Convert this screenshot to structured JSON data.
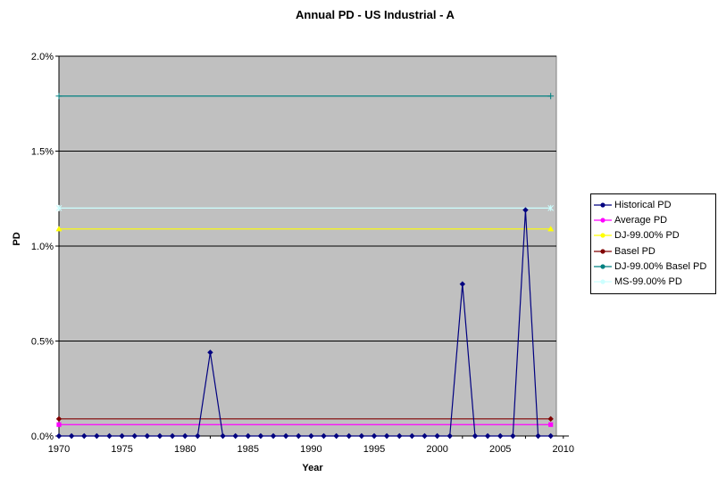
{
  "chart_data": {
    "type": "line",
    "title": "Annual PD - US Industrial - A",
    "xlabel": "Year",
    "ylabel": "PD",
    "xlim": [
      1970,
      2010
    ],
    "ylim": [
      0,
      0.02
    ],
    "x_ticks": [
      1970,
      1975,
      1980,
      1985,
      1990,
      1995,
      2000,
      2005,
      2010
    ],
    "y_ticks": [
      "0.0%",
      "0.5%",
      "1.0%",
      "1.5%",
      "2.0%"
    ],
    "y_tick_values": [
      0,
      0.005,
      0.01,
      0.015,
      0.02
    ],
    "grid": "horizontal",
    "legend_position": "right",
    "plot_background": "#c0c0c0",
    "x": [
      1970,
      1971,
      1972,
      1973,
      1974,
      1975,
      1976,
      1977,
      1978,
      1979,
      1980,
      1981,
      1982,
      1983,
      1984,
      1985,
      1986,
      1987,
      1988,
      1989,
      1990,
      1991,
      1992,
      1993,
      1994,
      1995,
      1996,
      1997,
      1998,
      1999,
      2000,
      2001,
      2002,
      2003,
      2004,
      2005,
      2006,
      2007,
      2008,
      2009
    ],
    "series": [
      {
        "name": "Historical PD",
        "color": "#000080",
        "marker": "diamond",
        "values": [
          0,
          0,
          0,
          0,
          0,
          0,
          0,
          0,
          0,
          0,
          0,
          0,
          0.0044,
          0,
          0,
          0,
          0,
          0,
          0,
          0,
          0,
          0,
          0,
          0,
          0,
          0,
          0,
          0,
          0,
          0,
          0,
          0,
          0.008,
          0,
          0,
          0,
          0,
          0.0119,
          0,
          0
        ]
      },
      {
        "name": "Average PD",
        "color": "#ff00ff",
        "marker": "square",
        "start": 1970,
        "end": 2009,
        "constant": 0.0006
      },
      {
        "name": "DJ-99.00% PD",
        "color": "#ffff00",
        "marker": "triangle",
        "start": 1970,
        "end": 2009,
        "constant": 0.0109
      },
      {
        "name": "Basel PD",
        "color": "#800000",
        "marker": "diamond",
        "start": 1970,
        "end": 2009,
        "constant": 0.0009
      },
      {
        "name": "DJ-99.00% Basel PD",
        "color": "#008080",
        "marker": "plus",
        "start": 1970,
        "end": 2009,
        "constant": 0.0179
      },
      {
        "name": "MS-99.00% PD",
        "color": "#ccffff",
        "marker": "star",
        "start": 1970,
        "end": 2009,
        "constant": 0.012
      }
    ]
  }
}
